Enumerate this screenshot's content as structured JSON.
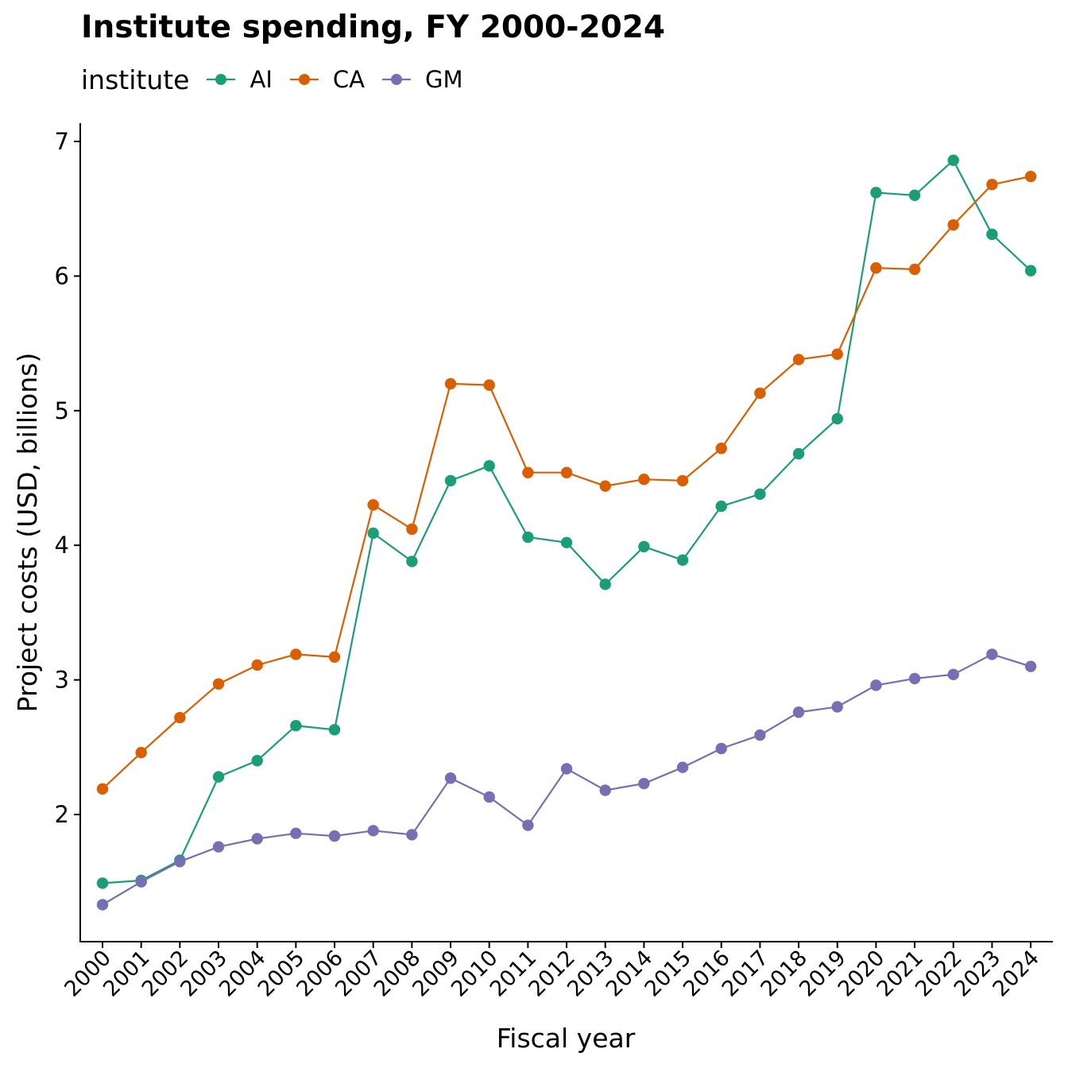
{
  "chart_data": {
    "type": "line",
    "title": "Institute spending, FY 2000-2024",
    "legend_title": "institute",
    "legend_position": "top",
    "xlabel": "Fiscal year",
    "ylabel": "Project costs (USD, billions)",
    "x": [
      "2000",
      "2001",
      "2002",
      "2003",
      "2004",
      "2005",
      "2006",
      "2007",
      "2008",
      "2009",
      "2010",
      "2011",
      "2012",
      "2013",
      "2014",
      "2015",
      "2016",
      "2017",
      "2018",
      "2019",
      "2020",
      "2021",
      "2022",
      "2023",
      "2024"
    ],
    "y_ticks": [
      2,
      3,
      4,
      5,
      6,
      7
    ],
    "ylim": [
      1.06,
      7.14
    ],
    "grid": false,
    "series": [
      {
        "name": "AI",
        "color": "#1b9e77",
        "values": [
          1.49,
          1.51,
          1.66,
          2.28,
          2.4,
          2.66,
          2.63,
          4.09,
          3.88,
          4.48,
          4.59,
          4.06,
          4.02,
          3.71,
          3.99,
          3.89,
          4.29,
          4.38,
          4.68,
          4.94,
          6.62,
          6.6,
          6.86,
          6.31,
          6.04
        ]
      },
      {
        "name": "CA",
        "color": "#d95f02",
        "values": [
          2.19,
          2.46,
          2.72,
          2.97,
          3.11,
          3.19,
          3.17,
          4.3,
          4.12,
          5.2,
          5.19,
          4.54,
          4.54,
          4.44,
          4.49,
          4.48,
          4.72,
          5.13,
          5.38,
          5.42,
          6.06,
          6.05,
          6.38,
          6.68,
          6.74
        ]
      },
      {
        "name": "GM",
        "color": "#7570b3",
        "values": [
          1.33,
          1.5,
          1.65,
          1.76,
          1.82,
          1.86,
          1.84,
          1.88,
          1.85,
          2.27,
          2.13,
          1.92,
          2.34,
          2.18,
          2.23,
          2.35,
          2.49,
          2.59,
          2.76,
          2.8,
          2.96,
          3.01,
          3.04,
          3.19,
          3.1
        ]
      }
    ]
  }
}
